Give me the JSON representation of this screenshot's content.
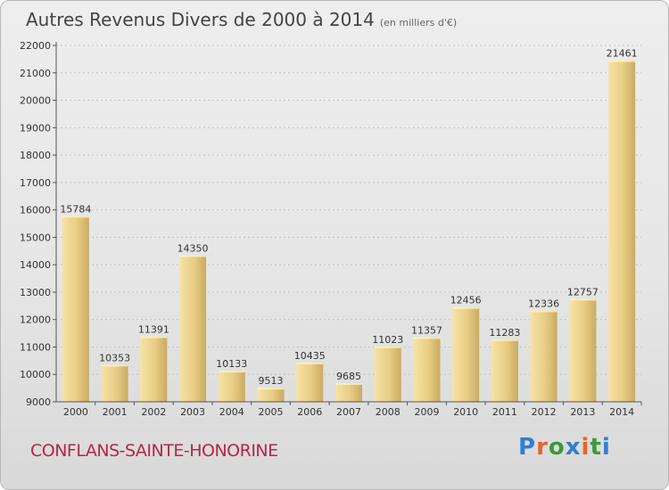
{
  "title": "Autres Revenus Divers de 2000 à 2014",
  "subtitle": "(en milliers d'€)",
  "footer": {
    "place": "CONFLANS-SAINTE-HONORINE",
    "brand": "Proxiti",
    "brand_colors": [
      "#2f7fd0",
      "#e8632a",
      "#3a9a3a",
      "#2f7fd0",
      "#e8632a",
      "#3a9a3a",
      "#2f7fd0"
    ]
  },
  "colors": {
    "bar_light": "#f5dd9a",
    "bar_dark": "#c8a960",
    "grid": "#c4c4c4",
    "axis": "#555555"
  },
  "chart_data": {
    "type": "bar",
    "categories": [
      "2000",
      "2001",
      "2002",
      "2003",
      "2004",
      "2005",
      "2006",
      "2007",
      "2008",
      "2009",
      "2010",
      "2011",
      "2012",
      "2013",
      "2014"
    ],
    "values": [
      15784,
      10353,
      11391,
      14350,
      10133,
      9513,
      10435,
      9685,
      11023,
      11357,
      12456,
      11283,
      12336,
      12757,
      21461
    ],
    "ylim": [
      9000,
      22000
    ],
    "yticks": [
      9000,
      10000,
      11000,
      12000,
      13000,
      14000,
      15000,
      16000,
      17000,
      18000,
      19000,
      20000,
      21000,
      22000
    ],
    "grid": true,
    "show_value_labels": true
  }
}
